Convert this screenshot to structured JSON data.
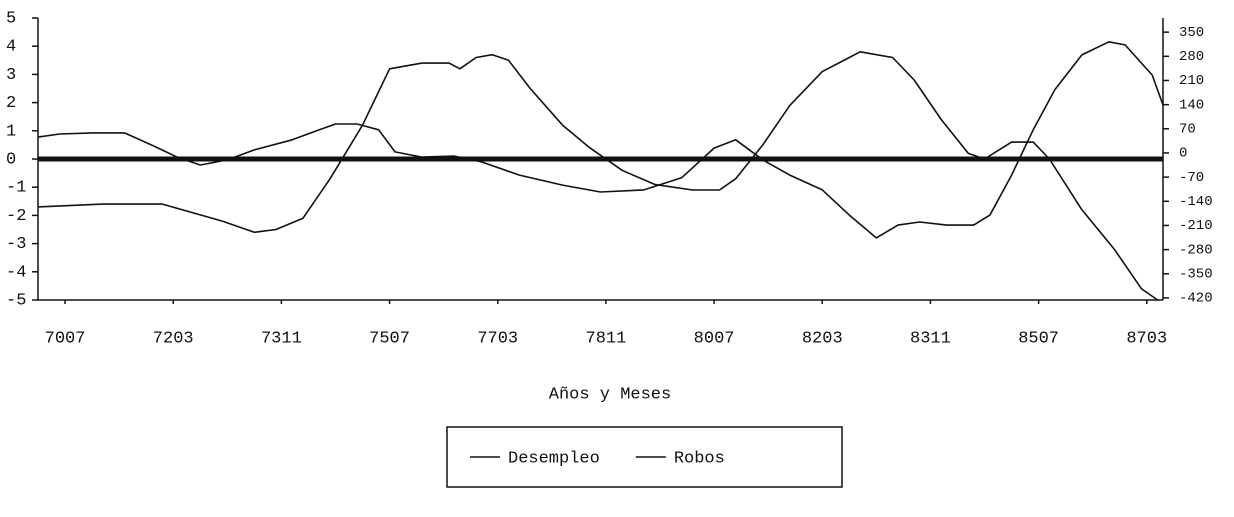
{
  "chart_data": {
    "type": "line",
    "xlabel": "Años y Meses",
    "xlim": [
      -5,
      203
    ],
    "ylim": [
      -5,
      5
    ],
    "y2lim": [
      -426,
      391
    ],
    "xticks": [
      {
        "value": 0,
        "label": "7007"
      },
      {
        "value": 20,
        "label": "7203"
      },
      {
        "value": 40,
        "label": "7311"
      },
      {
        "value": 60,
        "label": "7507"
      },
      {
        "value": 80,
        "label": "7703"
      },
      {
        "value": 100,
        "label": "7811"
      },
      {
        "value": 120,
        "label": "8007"
      },
      {
        "value": 140,
        "label": "8203"
      },
      {
        "value": 160,
        "label": "8311"
      },
      {
        "value": 180,
        "label": "8507"
      },
      {
        "value": 200,
        "label": "8703"
      }
    ],
    "yticks": [
      -5,
      -4,
      -3,
      -2,
      -1,
      0,
      1,
      2,
      3,
      4,
      5
    ],
    "y2ticks": [
      350,
      280,
      210,
      140,
      70,
      0,
      -70,
      -140,
      -210,
      -280,
      -350,
      -420
    ],
    "series": [
      {
        "name": "Desempleo",
        "color": "#111111",
        "x": [
          -5,
          7,
          18,
          29,
          35,
          39,
          44,
          49,
          55,
          60,
          66,
          71,
          73,
          76,
          79,
          82,
          86,
          92,
          97,
          103,
          109,
          116,
          121,
          124,
          129,
          134,
          140,
          145,
          147,
          153,
          157,
          162,
          167,
          170,
          175,
          179,
          182,
          188,
          194,
          199,
          202
        ],
        "values": [
          -1.7,
          -1.6,
          -1.6,
          -2.2,
          -2.6,
          -2.5,
          -2.1,
          -0.7,
          1.2,
          3.2,
          3.4,
          3.4,
          3.2,
          3.6,
          3.7,
          3.5,
          2.5,
          1.2,
          0.4,
          -0.4,
          -0.9,
          -1.1,
          -1.1,
          -0.7,
          0.5,
          1.9,
          3.1,
          3.6,
          3.8,
          3.6,
          2.8,
          1.4,
          0.2,
          0,
          0.6,
          0.6,
          0,
          -1.8,
          -3.2,
          -4.6,
          -5.0
        ]
      },
      {
        "name": "Robos",
        "color": "#111111",
        "axis": "y2",
        "x": [
          -5,
          -1,
          5,
          11,
          16,
          21,
          25,
          30,
          35,
          42,
          47,
          50,
          54,
          58,
          61,
          66,
          72,
          77,
          84,
          92,
          99,
          107,
          114,
          120,
          124,
          129,
          134,
          140,
          145,
          150,
          154,
          158,
          163,
          168,
          171,
          175,
          179,
          183,
          188,
          193,
          196,
          201,
          203
        ],
        "values": [
          46,
          55,
          58,
          58,
          23,
          -14,
          -35,
          -20,
          9,
          38,
          67,
          84,
          84,
          67,
          3,
          -12,
          -9,
          -26,
          -64,
          -93,
          -113,
          -107,
          -72,
          14,
          38,
          -20,
          -64,
          -107,
          -180,
          -246,
          -209,
          -200,
          -209,
          -209,
          -180,
          -64,
          67,
          183,
          284,
          322,
          313,
          226,
          139
        ]
      }
    ]
  }
}
